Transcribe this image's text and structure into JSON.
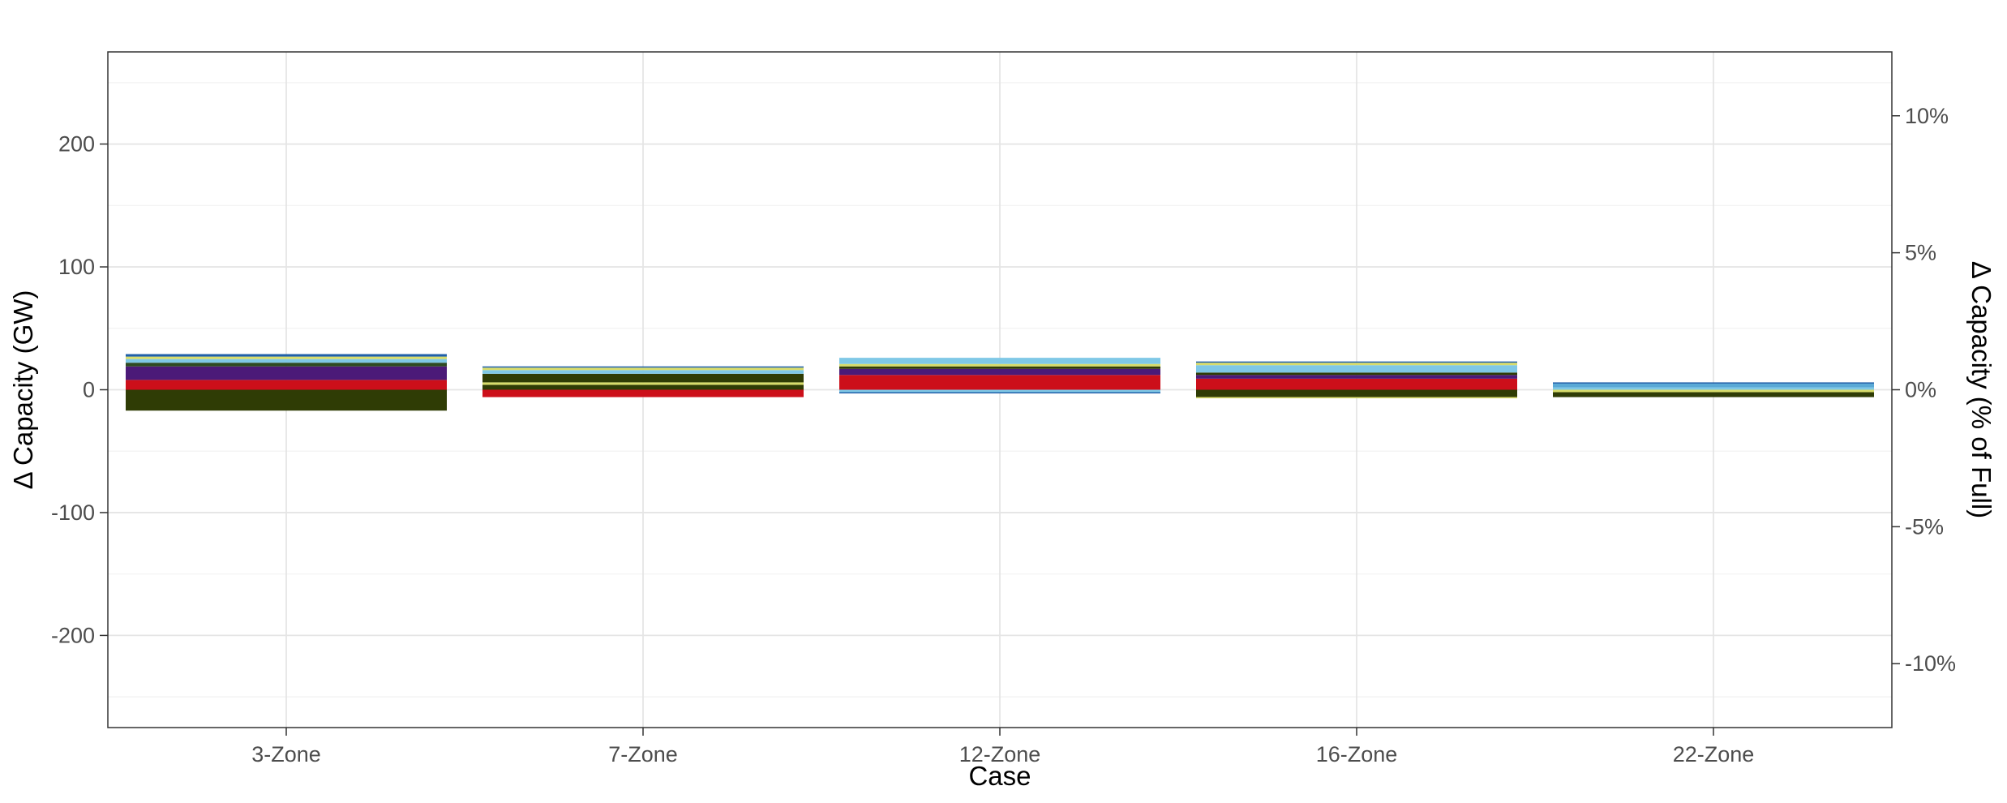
{
  "chart_data": {
    "type": "bar",
    "stacked": true,
    "title": "",
    "xlabel": "Case",
    "ylabel": "Δ Capacity (GW)",
    "y2label": "Δ Capacity (% of Full)",
    "categories": [
      "3-Zone",
      "7-Zone",
      "12-Zone",
      "16-Zone",
      "22-Zone"
    ],
    "ylim": [
      -275,
      275
    ],
    "y_ticks": [
      -200,
      -100,
      0,
      100,
      200
    ],
    "y_tick_labels": [
      "-200",
      "-100",
      "0",
      "100",
      "200"
    ],
    "y2_ticks": [
      -10,
      -5,
      0,
      5,
      10
    ],
    "y2_tick_labels": [
      "-10%",
      "-5%",
      "0%",
      "5%",
      "10%"
    ],
    "y2_scale_gw_per_percent": 22.3,
    "grid": true,
    "legend": "none",
    "segments": [
      [
        {
          "from": 0,
          "to": 8,
          "color": "#cc0f1a"
        },
        {
          "from": 8,
          "to": 19,
          "color": "#4b1a78"
        },
        {
          "from": 19,
          "to": 22,
          "color": "#2e4a22"
        },
        {
          "from": 22,
          "to": 25,
          "color": "#7fc8e6"
        },
        {
          "from": 25,
          "to": 27,
          "color": "#d8dc6a"
        },
        {
          "from": 27,
          "to": 29,
          "color": "#1f5fa8"
        },
        {
          "from": -17,
          "to": 0,
          "color": "#2f3c05"
        }
      ],
      [
        {
          "from": 0,
          "to": 4,
          "color": "#2f3c05"
        },
        {
          "from": 4,
          "to": 6,
          "color": "#d8dc6a"
        },
        {
          "from": 6,
          "to": 13,
          "color": "#2f3c05"
        },
        {
          "from": 13,
          "to": 16,
          "color": "#7fc8e6"
        },
        {
          "from": 16,
          "to": 18,
          "color": "#d8dc6a"
        },
        {
          "from": 18,
          "to": 19,
          "color": "#1f5fa8"
        },
        {
          "from": -6,
          "to": 0,
          "color": "#cc0f1a"
        }
      ],
      [
        {
          "from": 0,
          "to": 12,
          "color": "#cc0f1a"
        },
        {
          "from": 12,
          "to": 17,
          "color": "#4b1a78"
        },
        {
          "from": 17,
          "to": 19,
          "color": "#2f3c05"
        },
        {
          "from": 19,
          "to": 21,
          "color": "#d8dc6a"
        },
        {
          "from": 21,
          "to": 26,
          "color": "#7fc8e6"
        },
        {
          "from": -2,
          "to": 0,
          "color": "#7fc8e6"
        },
        {
          "from": -3,
          "to": -2,
          "color": "#1f5fa8"
        }
      ],
      [
        {
          "from": 0,
          "to": 9,
          "color": "#cc0f1a"
        },
        {
          "from": 9,
          "to": 12,
          "color": "#4b1a78"
        },
        {
          "from": 12,
          "to": 14,
          "color": "#2f3c05"
        },
        {
          "from": 14,
          "to": 20,
          "color": "#7fc8e6"
        },
        {
          "from": 20,
          "to": 22,
          "color": "#d8dc6a"
        },
        {
          "from": 22,
          "to": 23,
          "color": "#1f5fa8"
        },
        {
          "from": -6,
          "to": 0,
          "color": "#2f3c05"
        },
        {
          "from": -7,
          "to": -6,
          "color": "#d8dc6a"
        }
      ],
      [
        {
          "from": 0,
          "to": 2,
          "color": "#7fc8e6"
        },
        {
          "from": 2,
          "to": 5,
          "color": "#5aa9d6"
        },
        {
          "from": 5,
          "to": 6,
          "color": "#1f5fa8"
        },
        {
          "from": -2,
          "to": 0,
          "color": "#d8dc6a"
        },
        {
          "from": -6,
          "to": -2,
          "color": "#2f3c05"
        }
      ]
    ]
  }
}
